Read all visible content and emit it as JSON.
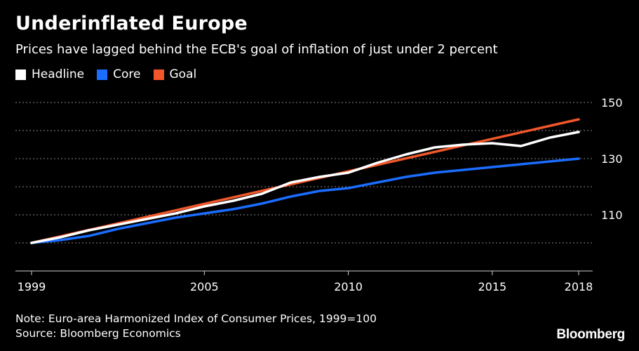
{
  "header": {
    "title": "Underinflated Europe",
    "subtitle": "Prices have lagged behind the ECB's goal of inflation of just under 2 percent"
  },
  "legend": {
    "items": [
      {
        "label": "Headline",
        "color": "#ffffff"
      },
      {
        "label": "Core",
        "color": "#1a6dff"
      },
      {
        "label": "Goal",
        "color": "#f2572b"
      }
    ]
  },
  "footer": {
    "note": "Note: Euro-area Harmonized Index of Consumer Prices, 1999=100",
    "source": "Source: Bloomberg Economics",
    "brand": "Bloomberg"
  },
  "chart_data": {
    "type": "line",
    "xlim": [
      1999,
      2018
    ],
    "ylim": [
      90,
      150
    ],
    "x_ticks": [
      1999,
      2005,
      2010,
      2015,
      2018
    ],
    "x_tick_labels": [
      "1999",
      "2005",
      "2010",
      "2015",
      "2018"
    ],
    "y_gridlines": [
      100,
      110,
      120,
      130,
      140,
      150
    ],
    "y_tick_labels": [
      {
        "value": 110,
        "label": "110"
      },
      {
        "value": 130,
        "label": "130"
      },
      {
        "value": 150,
        "label": "150"
      }
    ],
    "grid": true,
    "legend_position": "top-left",
    "series": [
      {
        "name": "Headline",
        "color": "#ffffff",
        "x": [
          1999,
          2000,
          2001,
          2002,
          2003,
          2004,
          2005,
          2006,
          2007,
          2008,
          2009,
          2010,
          2011,
          2012,
          2013,
          2014,
          2015,
          2016,
          2017,
          2018
        ],
        "y": [
          100,
          102,
          104.5,
          106.5,
          108.5,
          110.5,
          113,
          115,
          117.5,
          121.5,
          123.5,
          125,
          128.5,
          131.5,
          134,
          135,
          135.5,
          134.5,
          137.5,
          139.5
        ]
      },
      {
        "name": "Core",
        "color": "#1a6dff",
        "x": [
          1999,
          2000,
          2001,
          2002,
          2003,
          2004,
          2005,
          2006,
          2007,
          2008,
          2009,
          2010,
          2011,
          2012,
          2013,
          2014,
          2015,
          2016,
          2017,
          2018
        ],
        "y": [
          100,
          101,
          102.5,
          105,
          107,
          109,
          110.5,
          112,
          114,
          116.5,
          118.5,
          119.5,
          121.5,
          123.5,
          125,
          126,
          127,
          128,
          129,
          130
        ]
      },
      {
        "name": "Goal",
        "color": "#f2572b",
        "x": [
          1999,
          2018
        ],
        "y": [
          100,
          144
        ]
      }
    ]
  }
}
